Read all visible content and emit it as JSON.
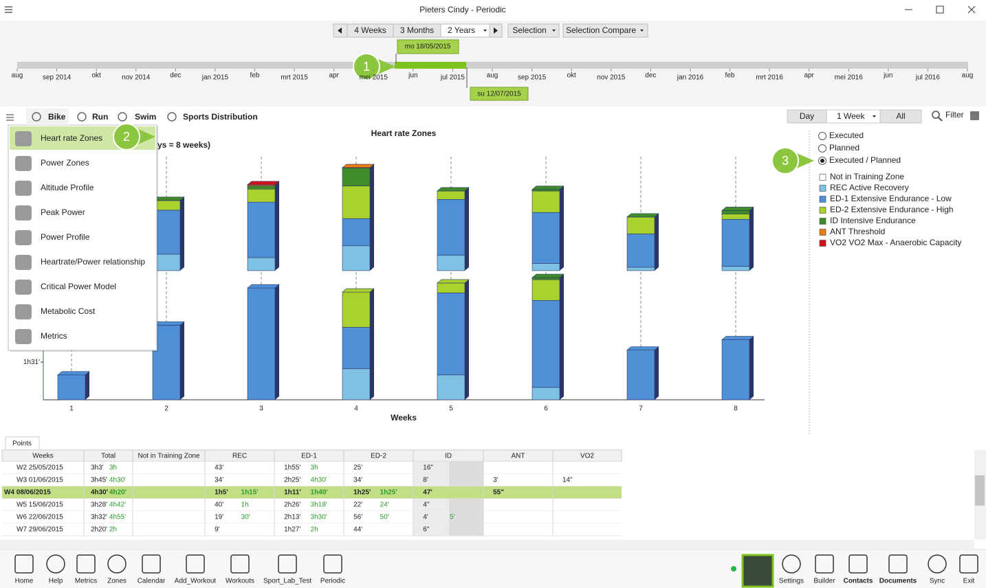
{
  "window": {
    "title": "Pieters Cindy - Periodic"
  },
  "toolbar": {
    "ranges": [
      "4 Weeks",
      "3 Months",
      "2 Years"
    ],
    "selected_range": 2,
    "selection": "Selection",
    "compare": "Selection Compare"
  },
  "timeline": {
    "months": [
      "aug",
      "sep 2014",
      "okt",
      "nov 2014",
      "dec",
      "jan 2015",
      "feb",
      "mrt 2015",
      "apr",
      "mei 2015",
      "jun",
      "jul 2015",
      "aug",
      "sep 2015",
      "okt",
      "nov 2015",
      "dec",
      "jan 2016",
      "feb",
      "mrt 2016",
      "apr",
      "mei 2016",
      "jun",
      "jul 2016",
      "aug"
    ],
    "start_label": "mo 18/05/2015",
    "end_label": "su 12/07/2015"
  },
  "badges": [
    "1",
    "2",
    "3"
  ],
  "sports": [
    "Bike",
    "Run",
    "Swim",
    "Sports Distribution"
  ],
  "view": {
    "modes": [
      "Day",
      "1 Week",
      "All"
    ],
    "filter": "Filter"
  },
  "menu": [
    "Heart rate Zones",
    "Power Zones",
    "Altitude Profile",
    "Peak Power",
    "Power Profile",
    "Heartrate/Power relationship",
    "Critical Power Model",
    "Metabolic Cost",
    "Metrics"
  ],
  "chart_data": [
    {
      "type": "stacked-bar",
      "title": "Heart rate Zones",
      "subtitle": "ys = 8 weeks)",
      "ylim": [
        0,
        330
      ],
      "series": [
        {
          "name": "Not in Training Zone",
          "color": "#ffffff",
          "values": [
            0,
            0,
            0,
            0,
            0,
            0,
            0,
            0
          ]
        },
        {
          "name": "REC Active Recovery",
          "color": "#7ec1e2",
          "values": [
            0,
            43,
            34,
            65,
            40,
            19,
            9,
            11
          ]
        },
        {
          "name": "ED-1 Extensive Endurance - Low",
          "color": "#4f8fd6",
          "values": [
            0,
            115,
            145,
            71,
            146,
            133,
            87,
            123
          ]
        },
        {
          "name": "ED-2 Extensive Endurance - High",
          "color": "#a9d22e",
          "values": [
            0,
            25,
            34,
            85,
            22,
            56,
            44,
            14
          ]
        },
        {
          "name": "ID Intensive Endurance",
          "color": "#3f8c2b",
          "values": [
            0,
            0.27,
            8,
            47,
            0.07,
            4,
            0.1,
            9
          ]
        },
        {
          "name": "ANT Threshold",
          "color": "#e67e14",
          "values": [
            0,
            0,
            3,
            0.92,
            0,
            0,
            0,
            0
          ]
        },
        {
          "name": "VO2 VO2 Max - Anaerobic Capacity",
          "color": "#d0121b",
          "values": [
            0,
            0,
            0.23,
            0,
            0,
            0,
            0,
            0
          ]
        }
      ]
    },
    {
      "type": "stacked-bar",
      "categories": [
        "1",
        "2",
        "3",
        "4",
        "5",
        "6",
        "7",
        "8"
      ],
      "x_label": "Weeks",
      "ylim": [
        0,
        330
      ],
      "yticks": [
        {
          "value": 91,
          "label": "1h31'"
        }
      ],
      "series": [
        {
          "values": [
            0,
            0,
            0,
            0,
            0,
            0,
            0,
            0
          ]
        },
        {
          "values": [
            0,
            0,
            0,
            75,
            60,
            30,
            0,
            0
          ]
        },
        {
          "values": [
            60,
            180,
            270,
            100,
            198,
            210,
            120,
            145
          ]
        },
        {
          "values": [
            0,
            0,
            0,
            85,
            24,
            50,
            0,
            0
          ]
        },
        {
          "values": [
            0,
            0,
            0,
            0,
            0,
            5,
            0,
            0
          ]
        },
        {
          "values": [
            0,
            0,
            0,
            0,
            0,
            0,
            0,
            0
          ]
        },
        {
          "values": [
            0,
            0,
            0,
            0,
            0,
            0,
            0,
            0
          ]
        }
      ]
    }
  ],
  "display": {
    "options": [
      "Executed",
      "Planned",
      "Executed / Planned"
    ],
    "selected": 2
  },
  "table": {
    "tab": "Points",
    "headers": [
      "Weeks",
      "Total",
      "Not in Training Zone",
      "REC",
      "ED-1",
      "ED-2",
      "ID",
      "ANT",
      "VO2"
    ],
    "highlighted_row": 2,
    "rows": [
      [
        "W2 25/05/2015",
        "3h3'",
        "3h",
        null,
        null,
        "43'",
        null,
        "1h55'",
        "3h",
        "25'",
        null,
        "16\"",
        null,
        null,
        null,
        null,
        null
      ],
      [
        "W3 01/06/2015",
        "3h45'",
        "4h30'",
        null,
        null,
        "34'",
        null,
        "2h25'",
        "4h30'",
        "34'",
        null,
        "8'",
        null,
        "3'",
        null,
        "14\"",
        null
      ],
      [
        "W4 08/06/2015",
        "4h30'",
        "4h20'",
        null,
        null,
        "1h5'",
        "1h15'",
        "1h11'",
        "1h40'",
        "1h25'",
        "1h25'",
        "47'",
        null,
        "55\"",
        null,
        null,
        null
      ],
      [
        "W5 15/06/2015",
        "3h28'",
        "4h42'",
        null,
        null,
        "40'",
        "1h",
        "2h26'",
        "3h18'",
        "22'",
        "24'",
        "4\"",
        null,
        null,
        null,
        null,
        null
      ],
      [
        "W6 22/06/2015",
        "3h32'",
        "4h55'",
        null,
        null,
        "19'",
        "30'",
        "2h13'",
        "3h30'",
        "56'",
        "50'",
        "4'",
        "5'",
        null,
        null,
        null,
        null
      ],
      [
        "W7 29/06/2015",
        "2h20'",
        "2h",
        null,
        null,
        "9'",
        null,
        "1h27'",
        "2h",
        "44'",
        null,
        "6\"",
        null,
        null,
        null,
        null,
        null
      ]
    ]
  },
  "nav": {
    "left": [
      "Home",
      "Help",
      "Metrics",
      "Zones",
      "Calendar",
      "Add_Workout",
      "Workouts",
      "Sport_Lab_Test",
      "Periodic"
    ],
    "right": [
      "Settings",
      "Builder",
      "Contacts",
      "Documents",
      "Sync",
      "Exit"
    ]
  }
}
